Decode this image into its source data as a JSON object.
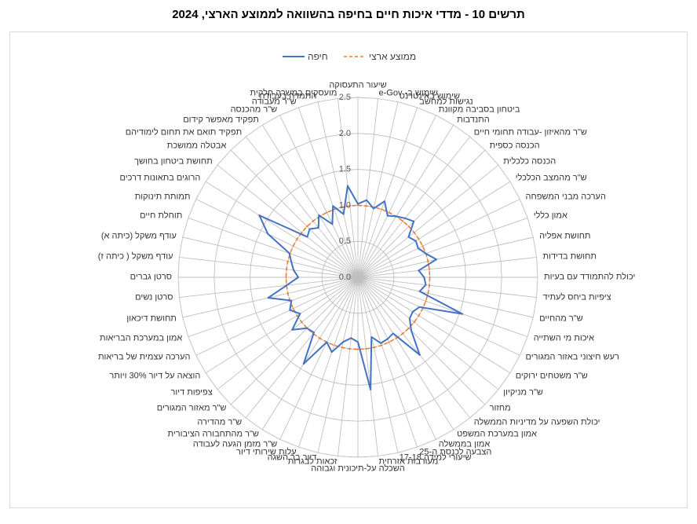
{
  "chart_data": {
    "type": "radar",
    "title": "תרשים 10 - מדדי איכות חיים בחיפה בהשוואה לממוצע הארצי, 2024",
    "ylim": [
      0,
      2.5
    ],
    "ticks": [
      "0.0",
      "0.5",
      "1.0",
      "1.5",
      "2.0",
      "2.5"
    ],
    "categories": [
      "שיעור התעסוקה",
      "שימוש ב- e-Gov",
      "שימוש באינטרנט",
      "נגישות למחשב",
      "ביטחון בסביבה מקוונת",
      "התנדבות",
      "ש\"ר מהאיזון -עבודה תחומי חיים",
      "הכנסה כספית",
      "הכנסה כלכלית",
      "ש\"ר מהמצב הכלכלי",
      "הערכה מבני המשפחה",
      "אמון כללי",
      "תחושת אפליה",
      "תחושת בדידות",
      "יכולת להתמודד עם בעיות",
      "ציפיות ביחס לעתיד",
      "ש\"ר מהחיים",
      "איכות מי השתייה",
      "רעש חיצוני באזור המגורים",
      "ש\"ר משטחים ירוקים",
      "ש\"ר מניקיון",
      "מחזור",
      "יכולת השפעה על מדיניות הממשלה",
      "אמון במערכת המשפט",
      "אמון בממשלה",
      "הצבעה לכנסת ה-25",
      "שיעורי למידה 17-18",
      "מעורבות אזרחית",
      "השכלה על-תיכונית וגבוהה",
      "זכאות לבגרות",
      "דיור בר השגה",
      "עלות שירותי דיור",
      "ש\"ר מזמן הגעה לעבודה",
      "ש\"ר מהתחבורה הציבורית",
      "ש\"ר מהדירה",
      "ש\"ר מאזור המגורים",
      "צפיפות דיור",
      "הוצאה על דיור 30% ויותר",
      "הערכה עצמית של בריאות",
      "אמון במערכת הבריאות",
      "תחושת דיכאון",
      "סרטן נשים",
      "סרטן גברים",
      "עודף משקל ( כיתה ז)",
      "עודף משקל (כיתה א)",
      "תוחלת חיים",
      "תמותת תינוקות",
      "הרוגים בתאונות דרכים",
      "תחושת ביטחון בחושך",
      "אבטלה ממושכת",
      "תפקיד תואם את תחום לימודיהם",
      "תפקיד מאפשר קידום",
      "ש\"ר מהכנסה",
      "ש\"ר מעבודה",
      "התמדה בעבודה",
      "מועסקים במשרה חלקית"
    ],
    "series": [
      {
        "name": "חיפה",
        "color": "#4472c4",
        "values": [
          1.02,
          1.08,
          0.98,
          1.12,
          0.95,
          1.0,
          1.05,
          1.1,
          0.9,
          0.95,
          0.93,
          1.0,
          1.12,
          0.85,
          0.92,
          0.95,
          0.88,
          1.54,
          0.95,
          0.9,
          0.92,
          1.05,
          1.38,
          0.92,
          0.95,
          0.97,
          0.85,
          1.57,
          0.9,
          0.85,
          0.92,
          1.1,
          1.0,
          1.42,
          0.98,
          1.0,
          1.17,
          0.95,
          1.05,
          0.98,
          1.28,
          1.0,
          0.83,
          0.9,
          0.95,
          1.01,
          1.39,
          1.62,
          0.9,
          0.95,
          0.88,
          1.02,
          0.82,
          1.05,
          0.9,
          1.28
        ]
      },
      {
        "name": "ממוצע ארצי",
        "color": "#ed7d31",
        "values": [
          1,
          1,
          1,
          1,
          1,
          1,
          1,
          1,
          1,
          1,
          1,
          1,
          1,
          1,
          1,
          1,
          1,
          1,
          1,
          1,
          1,
          1,
          1,
          1,
          1,
          1,
          1,
          1,
          1,
          1,
          1,
          1,
          1,
          1,
          1,
          1,
          1,
          1,
          1,
          1,
          1,
          1,
          1,
          1,
          1,
          1,
          1,
          1,
          1,
          1,
          1,
          1,
          1,
          1,
          1,
          1
        ]
      }
    ]
  }
}
